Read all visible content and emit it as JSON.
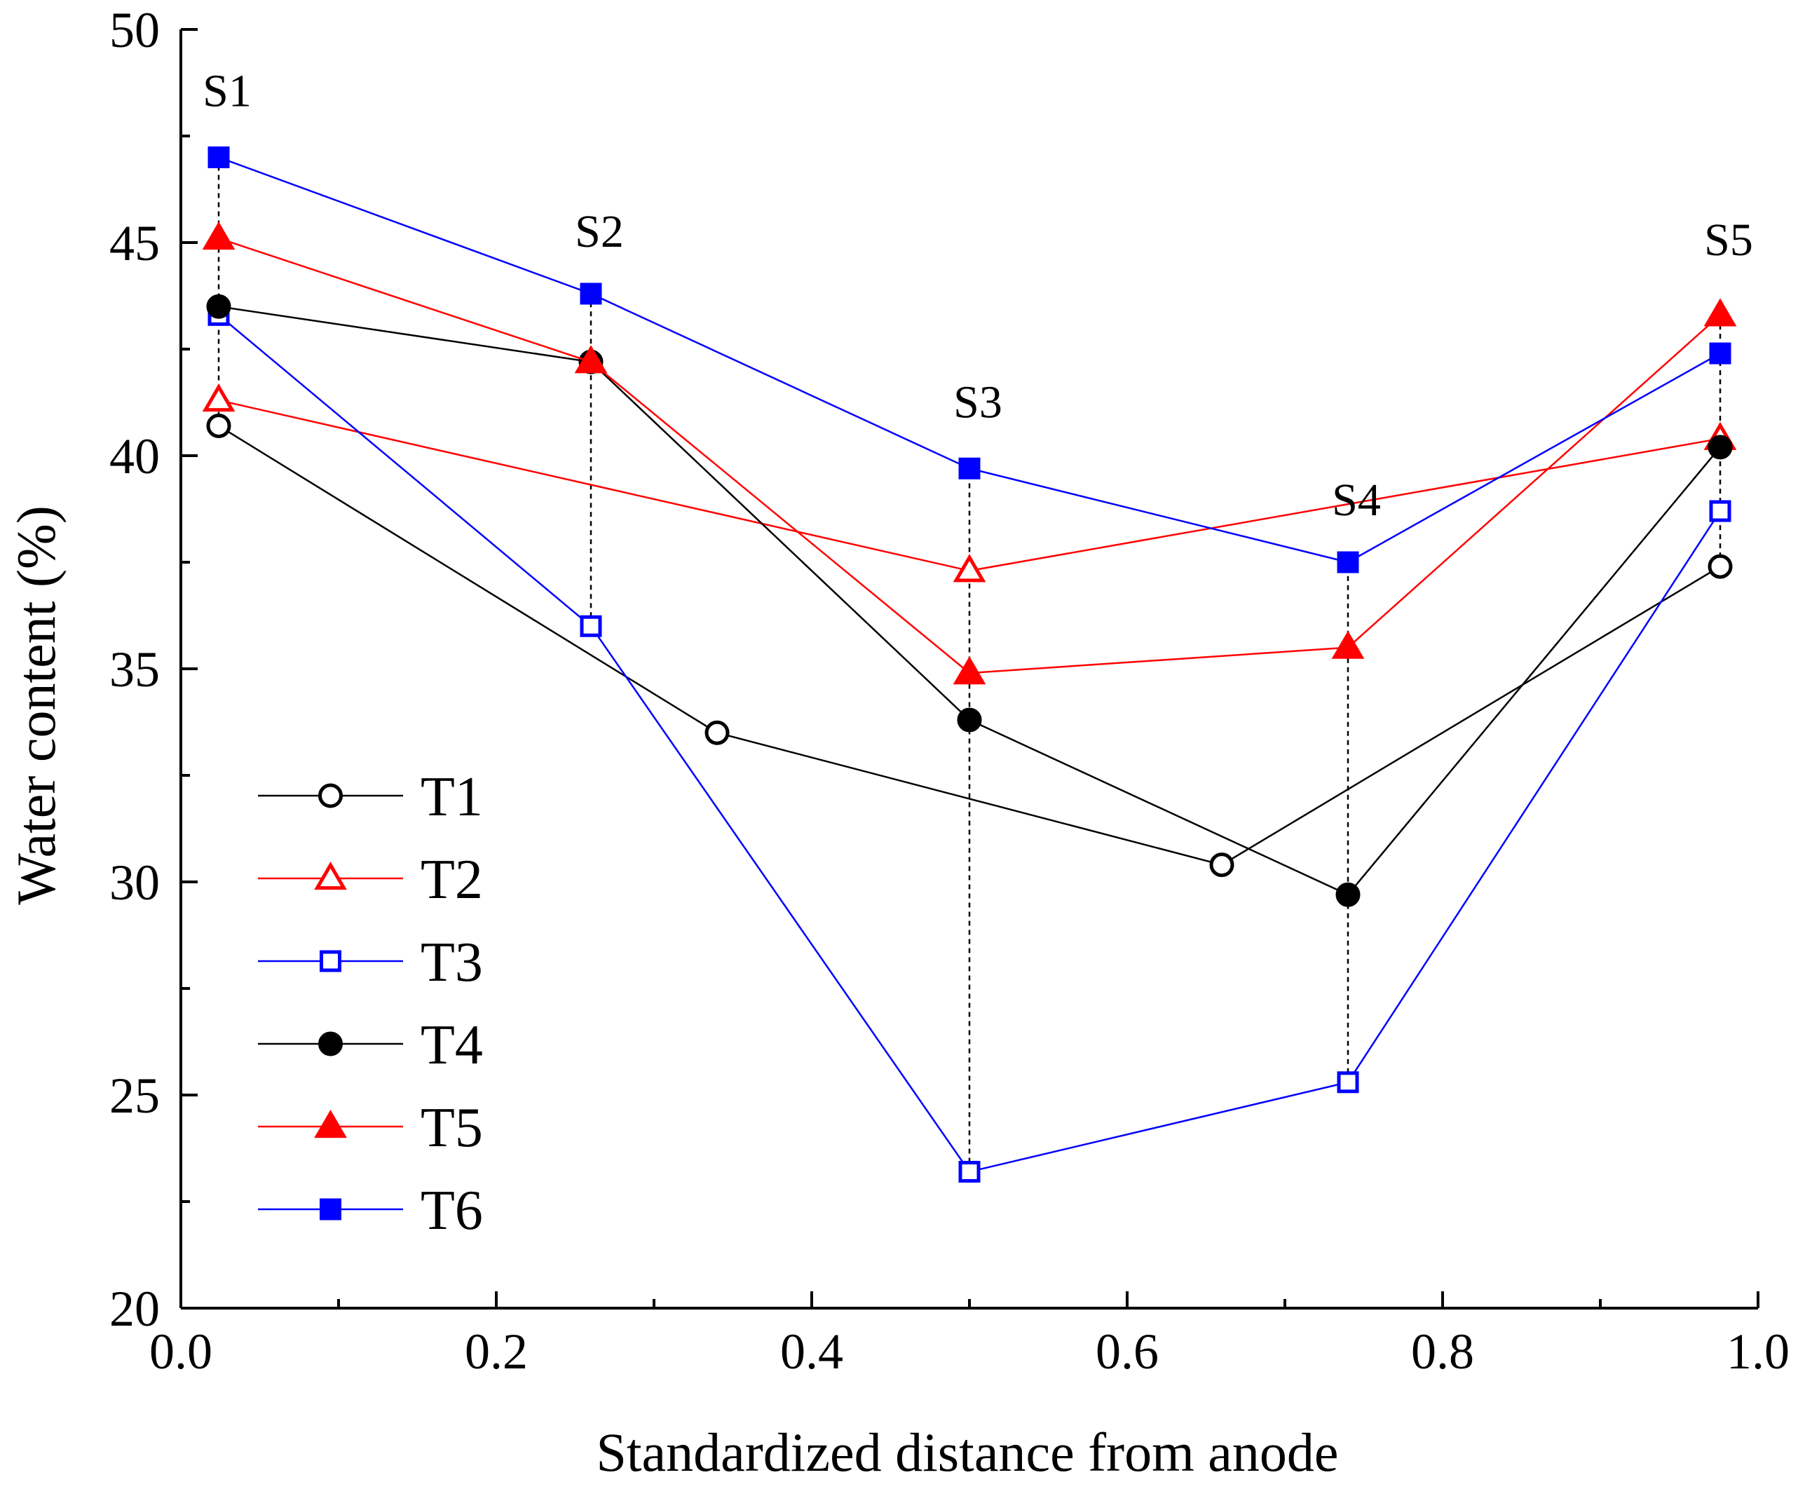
{
  "chart_data": {
    "type": "line",
    "xlabel": "Standardized distance from anode",
    "ylabel": "Water content (%)",
    "xlim": [
      0.0,
      1.0
    ],
    "ylim": [
      20,
      50
    ],
    "x_ticks": [
      "0.0",
      "0.2",
      "0.4",
      "0.6",
      "0.8",
      "1.0"
    ],
    "y_ticks": [
      "20",
      "25",
      "30",
      "35",
      "40",
      "45",
      "50"
    ],
    "legend_position": "left",
    "series": [
      {
        "name": "T1",
        "color": "#000000",
        "marker": "circle-open",
        "x": [
          0.024,
          0.34,
          0.66,
          0.976
        ],
        "y": [
          40.7,
          33.5,
          30.4,
          37.4
        ]
      },
      {
        "name": "T2",
        "color": "#ff0000",
        "marker": "triangle-open",
        "x": [
          0.024,
          0.5,
          0.976
        ],
        "y": [
          41.3,
          37.3,
          40.4
        ]
      },
      {
        "name": "T3",
        "color": "#0000ff",
        "marker": "square-open",
        "x": [
          0.024,
          0.26,
          0.5,
          0.74,
          0.976
        ],
        "y": [
          43.3,
          36.0,
          23.2,
          25.3,
          38.7
        ]
      },
      {
        "name": "T4",
        "color": "#000000",
        "marker": "circle-filled",
        "x": [
          0.024,
          0.26,
          0.5,
          0.74,
          0.976
        ],
        "y": [
          43.5,
          42.2,
          33.8,
          29.7,
          40.2
        ]
      },
      {
        "name": "T5",
        "color": "#ff0000",
        "marker": "triangle-filled",
        "x": [
          0.024,
          0.26,
          0.5,
          0.74,
          0.976
        ],
        "y": [
          45.1,
          42.2,
          34.9,
          35.5,
          43.3
        ]
      },
      {
        "name": "T6",
        "color": "#0000ff",
        "marker": "square-filled",
        "x": [
          0.024,
          0.26,
          0.5,
          0.74,
          0.976
        ],
        "y": [
          47.0,
          43.8,
          39.7,
          37.5,
          42.4
        ]
      }
    ],
    "annotations": [
      {
        "text": "S1",
        "x": 0.024,
        "y": 48.2
      },
      {
        "text": "S2",
        "x": 0.26,
        "y": 44.9
      },
      {
        "text": "S3",
        "x": 0.5,
        "y": 40.9
      },
      {
        "text": "S4",
        "x": 0.74,
        "y": 38.6
      },
      {
        "text": "S5",
        "x": 0.976,
        "y": 44.7
      }
    ],
    "dashed_verticals": [
      {
        "x": 0.024,
        "y": [
          40.7,
          47.0
        ]
      },
      {
        "x": 0.26,
        "y": [
          36.0,
          43.8
        ]
      },
      {
        "x": 0.5,
        "y": [
          23.2,
          39.7
        ]
      },
      {
        "x": 0.74,
        "y": [
          25.3,
          37.5
        ]
      },
      {
        "x": 0.976,
        "y": [
          37.4,
          43.3
        ]
      }
    ]
  }
}
